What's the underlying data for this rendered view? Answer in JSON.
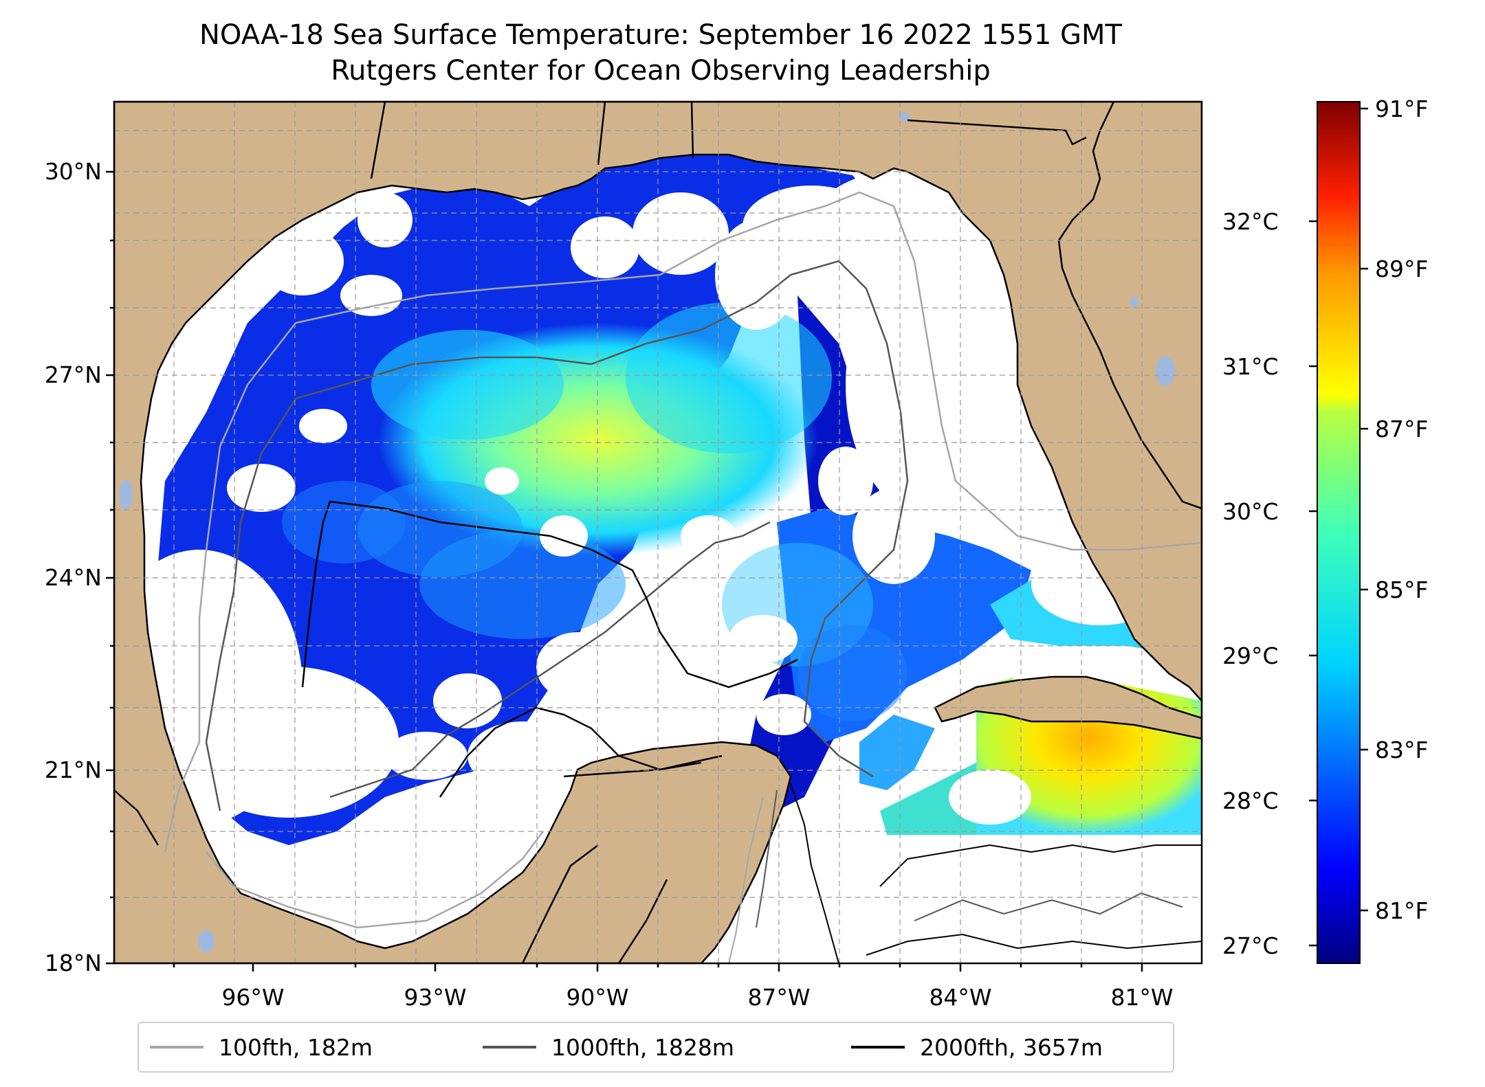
{
  "title": "NOAA-18 Sea Surface Temperature: September 16 2022 1551 GMT",
  "subtitle": "Rutgers Center for Ocean Observing Leadership",
  "lat_ticks": [
    "30°N",
    "27°N",
    "24°N",
    "21°N",
    "18°N"
  ],
  "lon_ticks": [
    "96°W",
    "93°W",
    "90°W",
    "87°W",
    "84°W",
    "81°W"
  ],
  "colorbar": {
    "fahrenheit_ticks": [
      "91°F",
      "89°F",
      "87°F",
      "85°F",
      "83°F",
      "81°F"
    ],
    "celsius_ticks": [
      "32°C",
      "31°C",
      "30°C",
      "29°C",
      "28°C",
      "27°C"
    ],
    "colormap": "jet"
  },
  "legend": [
    {
      "label": "100fth, 182m",
      "color": "#a6a6a6"
    },
    {
      "label": "1000fth, 1828m",
      "color": "#555555"
    },
    {
      "label": "2000fth, 3657m",
      "color": "#000000"
    }
  ],
  "colors": {
    "land": "#d2b48c",
    "no_data": "#ffffff",
    "lakes": "#9fb8e0"
  }
}
